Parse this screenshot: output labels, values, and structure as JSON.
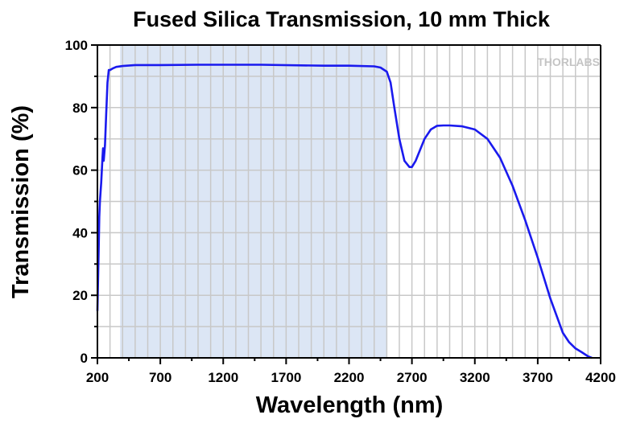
{
  "chart_data": {
    "type": "line",
    "title": "Fused Silica Transmission, 10 mm Thick",
    "xlabel": "Wavelength (nm)",
    "ylabel": "Transmission (%)",
    "xlim": [
      200,
      4200
    ],
    "ylim": [
      0,
      100
    ],
    "xticks": [
      200,
      700,
      1200,
      1700,
      2200,
      2700,
      3200,
      3700,
      4200
    ],
    "yticks": [
      0,
      20,
      40,
      60,
      80,
      100
    ],
    "grid": true,
    "legend": "none",
    "highlight_band": {
      "x_start": 380,
      "x_end": 2500,
      "color": "#dce6f5"
    },
    "line_color": "#1a1aee",
    "series": [
      {
        "x": [
          200,
          205,
          210,
          215,
          220,
          225,
          230,
          235,
          240,
          245,
          250,
          260,
          270,
          280,
          290,
          300,
          320,
          350,
          400,
          500,
          700,
          1000,
          1500,
          2000,
          2200,
          2400,
          2450,
          2500,
          2530,
          2560,
          2600,
          2640,
          2680,
          2700,
          2730,
          2760,
          2800,
          2850,
          2900,
          2950,
          3000,
          3100,
          3200,
          3300,
          3400,
          3500,
          3600,
          3700,
          3800,
          3900,
          3950,
          4000,
          4050,
          4100,
          4130
        ],
        "y": [
          15,
          25,
          35,
          45,
          50,
          53,
          56,
          60,
          64,
          67,
          63,
          68,
          78,
          88,
          92,
          92,
          92.5,
          93,
          93.3,
          93.6,
          93.6,
          93.7,
          93.7,
          93.4,
          93.4,
          93.2,
          92.8,
          91.5,
          88,
          80,
          70,
          63,
          61,
          61,
          63,
          66,
          70,
          73,
          74.2,
          74.3,
          74.3,
          74,
          73,
          70,
          64,
          55,
          44,
          32,
          19,
          8,
          5,
          3,
          1.8,
          0.5,
          0
        ]
      }
    ],
    "logo": "THORLABS"
  }
}
